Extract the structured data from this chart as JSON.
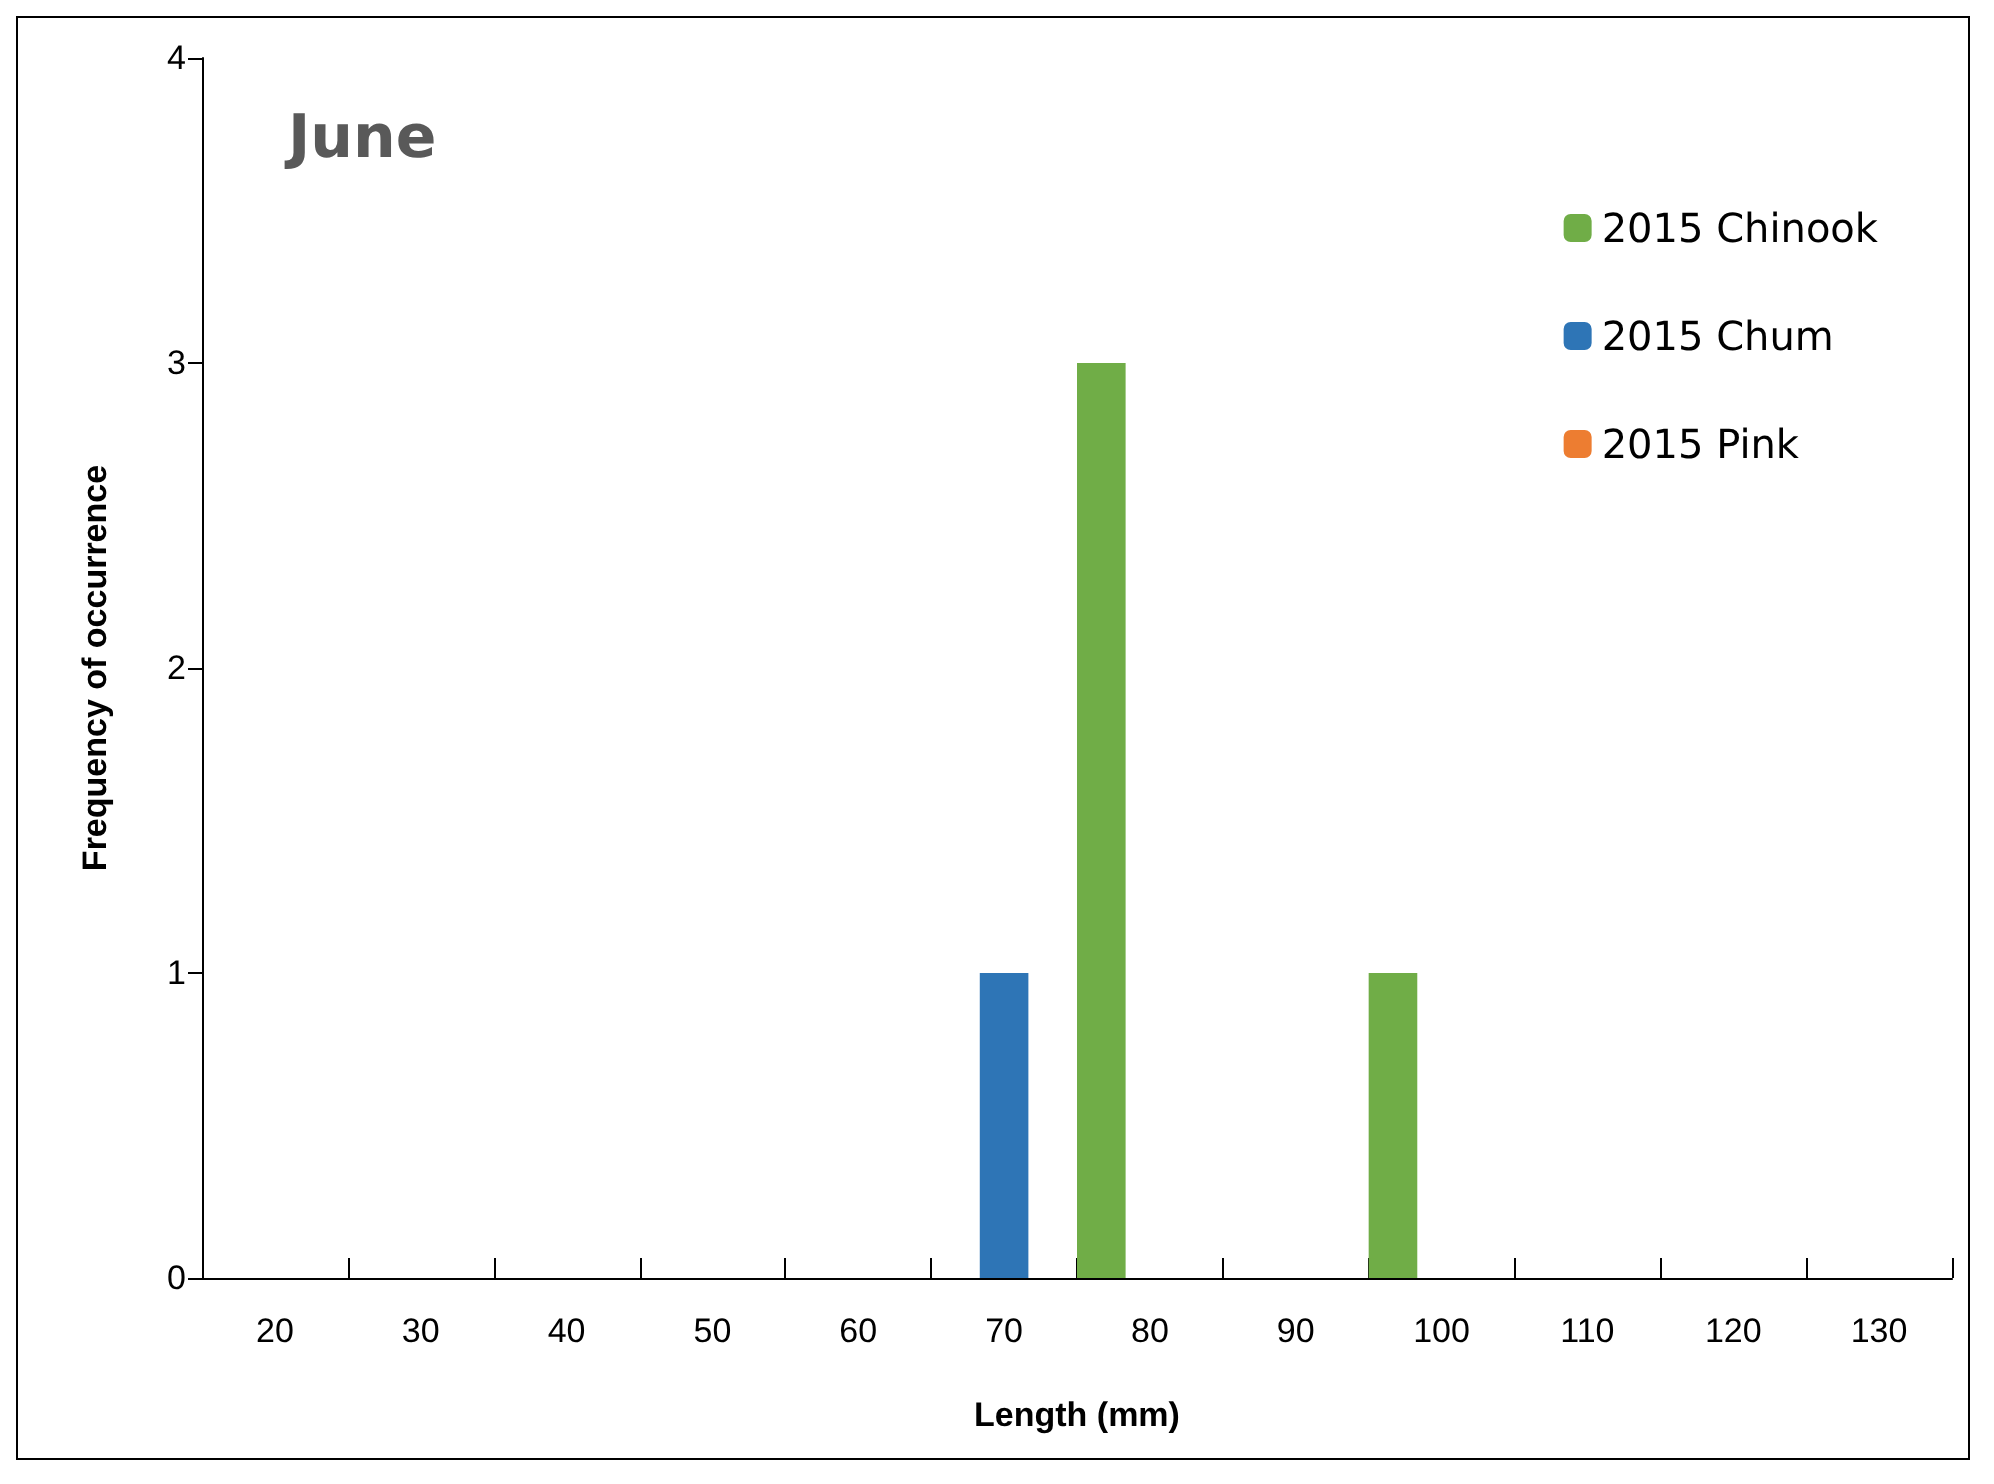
{
  "chart_data": {
    "type": "bar",
    "title": "June",
    "xlabel": "Length (mm)",
    "ylabel": "Frequency of occurrence",
    "categories": [
      "20",
      "30",
      "40",
      "50",
      "60",
      "70",
      "80",
      "90",
      "100",
      "110",
      "120",
      "130"
    ],
    "series": [
      {
        "name": "2015 Chinook",
        "color": "#70ad47",
        "values": [
          0,
          0,
          0,
          0,
          0,
          0,
          3,
          0,
          1,
          0,
          0,
          0
        ]
      },
      {
        "name": "2015 Chum",
        "color": "#2e75b6",
        "values": [
          0,
          0,
          0,
          0,
          0,
          1,
          0,
          0,
          0,
          0,
          0,
          0
        ]
      },
      {
        "name": "2015 Pink",
        "color": "#ed7d31",
        "values": [
          0,
          0,
          0,
          0,
          0,
          0,
          0,
          0,
          0,
          0,
          0,
          0
        ]
      }
    ],
    "ylim": [
      0,
      4
    ],
    "yticks": [
      0,
      1,
      2,
      3,
      4
    ],
    "grid": false,
    "legend": "top right"
  }
}
